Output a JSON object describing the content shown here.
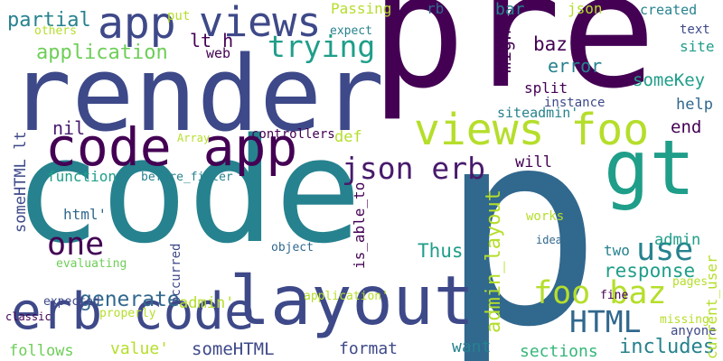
{
  "palette": {
    "background": "#ffffff",
    "dark_purple": "#440154",
    "purple": "#481a6c",
    "indigo": "#3e4989",
    "blue": "#31688e",
    "teal": "#26828e",
    "green_teal": "#1f9e89",
    "green": "#35b779",
    "light_green": "#6ece58",
    "yellow_green": "#b5de2b"
  },
  "words": [
    {
      "text": "pre",
      "color": "#440154",
      "orientation": "horizontal"
    },
    {
      "text": "code",
      "color": "#26828e",
      "orientation": "horizontal"
    },
    {
      "text": "p",
      "color": "#31688e",
      "orientation": "horizontal"
    },
    {
      "text": "render",
      "color": "#3e4989",
      "orientation": "horizontal"
    },
    {
      "text": "gt",
      "color": "#1f9e89",
      "orientation": "horizontal"
    },
    {
      "text": "layout",
      "color": "#3e4989",
      "orientation": "horizontal"
    },
    {
      "text": "code app",
      "color": "#440154",
      "orientation": "horizontal"
    },
    {
      "text": "views foo",
      "color": "#b5de2b",
      "orientation": "horizontal"
    },
    {
      "text": "erb code",
      "color": "#3e4989",
      "orientation": "horizontal"
    },
    {
      "text": "app",
      "color": "#3e4989",
      "orientation": "horizontal"
    },
    {
      "text": "views",
      "color": "#3e4989",
      "orientation": "horizontal"
    },
    {
      "text": "json erb",
      "color": "#481a6c",
      "orientation": "horizontal"
    },
    {
      "text": "trying",
      "color": "#1f9e89",
      "orientation": "horizontal"
    },
    {
      "text": "one",
      "color": "#440154",
      "orientation": "horizontal"
    },
    {
      "text": "use",
      "color": "#26828e",
      "orientation": "horizontal"
    },
    {
      "text": "foo baz",
      "color": "#b5de2b",
      "orientation": "horizontal"
    },
    {
      "text": "HTML",
      "color": "#31688e",
      "orientation": "horizontal"
    },
    {
      "text": "application",
      "color": "#6ece58",
      "orientation": "horizontal"
    },
    {
      "text": "partial",
      "color": "#26828e",
      "orientation": "horizontal"
    },
    {
      "text": "Passing",
      "color": "#b5de2b",
      "orientation": "horizontal"
    },
    {
      "text": "rb",
      "color": "#31688e",
      "orientation": "horizontal"
    },
    {
      "text": "bar",
      "color": "#26828e",
      "orientation": "horizontal"
    },
    {
      "text": "json",
      "color": "#b5de2b",
      "orientation": "horizontal"
    },
    {
      "text": "created",
      "color": "#26828e",
      "orientation": "horizontal"
    },
    {
      "text": "baz'",
      "color": "#440154",
      "orientation": "horizontal"
    },
    {
      "text": "error",
      "color": "#26828e",
      "orientation": "horizontal"
    },
    {
      "text": "someKey",
      "color": "#1f9e89",
      "orientation": "horizontal"
    },
    {
      "text": "split",
      "color": "#440154",
      "orientation": "horizontal"
    },
    {
      "text": "siteadmin'",
      "color": "#26828e",
      "orientation": "horizontal"
    },
    {
      "text": "help",
      "color": "#31688e",
      "orientation": "horizontal"
    },
    {
      "text": "end",
      "color": "#440154",
      "orientation": "horizontal"
    },
    {
      "text": "nil",
      "color": "#481a6c",
      "orientation": "horizontal"
    },
    {
      "text": "generate",
      "color": "#31688e",
      "orientation": "horizontal"
    },
    {
      "text": "response",
      "color": "#1f9e89",
      "orientation": "horizontal"
    },
    {
      "text": "admin'",
      "color": "#b5de2b",
      "orientation": "horizontal"
    },
    {
      "text": "value'",
      "color": "#b5de2b",
      "orientation": "horizontal"
    },
    {
      "text": "someHTML",
      "color": "#3e4989",
      "orientation": "horizontal"
    },
    {
      "text": "format",
      "color": "#3e4989",
      "orientation": "horizontal"
    },
    {
      "text": "want",
      "color": "#26828e",
      "orientation": "horizontal"
    },
    {
      "text": "includes",
      "color": "#26828e",
      "orientation": "horizontal"
    },
    {
      "text": "sections",
      "color": "#35b779",
      "orientation": "horizontal"
    },
    {
      "text": "follows",
      "color": "#6ece58",
      "orientation": "horizontal"
    },
    {
      "text": "function",
      "color": "#1f9e89",
      "orientation": "horizontal"
    },
    {
      "text": "html'",
      "color": "#31688e",
      "orientation": "horizontal"
    },
    {
      "text": "Thus",
      "color": "#1f9e89",
      "orientation": "horizontal"
    },
    {
      "text": "will",
      "color": "#440154",
      "orientation": "horizontal"
    },
    {
      "text": "def",
      "color": "#b5de2b",
      "orientation": "horizontal"
    },
    {
      "text": "lt h",
      "color": "#440154",
      "orientation": "horizontal"
    },
    {
      "text": "web",
      "color": "#440154",
      "orientation": "horizontal"
    },
    {
      "text": "expect",
      "color": "#26828e",
      "orientation": "horizontal"
    },
    {
      "text": "put",
      "color": "#b5de2b",
      "orientation": "horizontal"
    },
    {
      "text": "others",
      "color": "#b5de2b",
      "orientation": "horizontal"
    },
    {
      "text": "text",
      "color": "#3e4989",
      "orientation": "horizontal"
    },
    {
      "text": "site",
      "color": "#1f9e89",
      "orientation": "horizontal"
    },
    {
      "text": "controllers",
      "color": "#440154",
      "orientation": "horizontal"
    },
    {
      "text": "Array",
      "color": "#b5de2b",
      "orientation": "horizontal"
    },
    {
      "text": "before_filter",
      "color": "#26828e",
      "orientation": "horizontal"
    },
    {
      "text": "instance",
      "color": "#3e4989",
      "orientation": "horizontal"
    },
    {
      "text": "works",
      "color": "#b5de2b",
      "orientation": "horizontal"
    },
    {
      "text": "idea",
      "color": "#31688e",
      "orientation": "horizontal"
    },
    {
      "text": "two",
      "color": "#26828e",
      "orientation": "horizontal"
    },
    {
      "text": "admin",
      "color": "#1f9e89",
      "orientation": "horizontal"
    },
    {
      "text": "object",
      "color": "#31688e",
      "orientation": "horizontal"
    },
    {
      "text": "evaluating",
      "color": "#6ece58",
      "orientation": "horizontal"
    },
    {
      "text": "classic",
      "color": "#440154",
      "orientation": "horizontal"
    },
    {
      "text": "expected",
      "color": "#3e4989",
      "orientation": "horizontal"
    },
    {
      "text": "properly",
      "color": "#b5de2b",
      "orientation": "horizontal"
    },
    {
      "text": "application'",
      "color": "#b5de2b",
      "orientation": "horizontal"
    },
    {
      "text": "fine",
      "color": "#440154",
      "orientation": "horizontal"
    },
    {
      "text": "pages",
      "color": "#b5de2b",
      "orientation": "horizontal"
    },
    {
      "text": "missing",
      "color": "#b5de2b",
      "orientation": "horizontal"
    },
    {
      "text": "anyone",
      "color": "#3e4989",
      "orientation": "horizontal"
    },
    {
      "text": "might",
      "color": "#440154",
      "orientation": "vertical"
    },
    {
      "text": "someHTML lt",
      "color": "#3e4989",
      "orientation": "vertical"
    },
    {
      "text": "is_able_to",
      "color": "#440154",
      "orientation": "vertical"
    },
    {
      "text": "admin_layout",
      "color": "#b5de2b",
      "orientation": "vertical"
    },
    {
      "text": "occurred",
      "color": "#3e4989",
      "orientation": "vertical"
    },
    {
      "text": "current_user",
      "color": "#b5de2b",
      "orientation": "vertical"
    }
  ]
}
